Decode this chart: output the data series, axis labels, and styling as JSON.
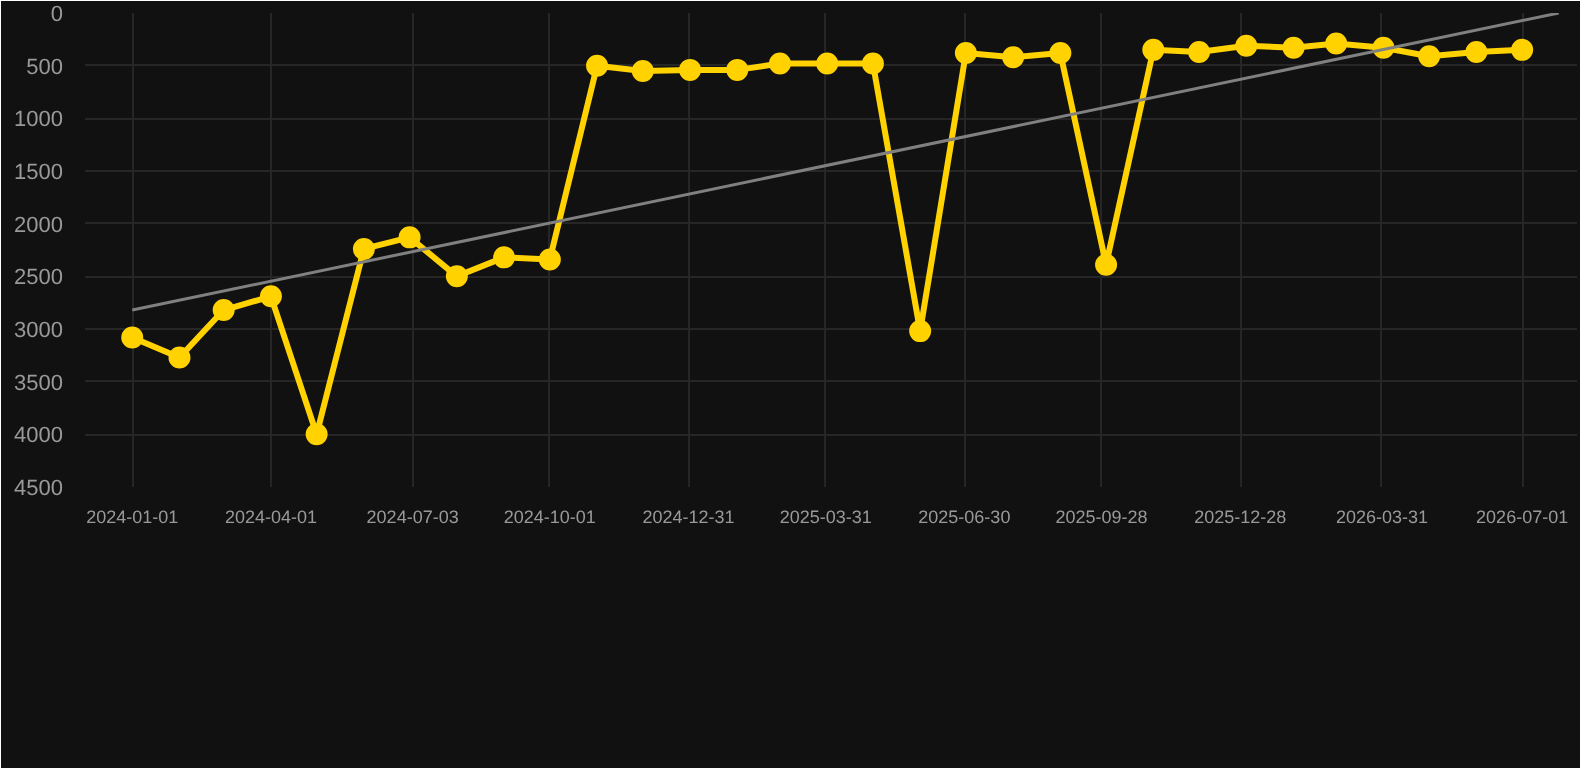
{
  "chart_data": {
    "type": "line",
    "x": [
      "2024-01-01",
      "2024-02-01",
      "2024-03-01",
      "2024-04-01",
      "2024-05-01",
      "2024-06-01",
      "2024-07-01",
      "2024-08-01",
      "2024-09-01",
      "2024-10-01",
      "2024-11-01",
      "2024-12-01",
      "2025-01-01",
      "2025-02-01",
      "2025-03-01",
      "2025-04-01",
      "2025-05-01",
      "2025-06-01",
      "2025-07-01",
      "2025-08-01",
      "2025-09-01",
      "2025-10-01",
      "2025-11-01",
      "2025-12-01",
      "2026-01-01",
      "2026-02-01",
      "2026-03-01",
      "2026-04-01",
      "2026-05-01",
      "2026-06-01",
      "2026-07-01"
    ],
    "series": [
      {
        "color": "#ffd200",
        "marker": "circle",
        "values": [
          3080,
          3270,
          2820,
          2690,
          4000,
          2240,
          2130,
          2500,
          2320,
          2340,
          500,
          550,
          540,
          540,
          480,
          480,
          480,
          3020,
          380,
          420,
          380,
          2390,
          350,
          370,
          310,
          330,
          290,
          330,
          410,
          370,
          350
        ]
      },
      {
        "type": "line",
        "color": "#808080",
        "marker": "none",
        "x": [
          "2024-01-01",
          "2026-07-25"
        ],
        "values": [
          2820,
          0
        ]
      }
    ],
    "xlim": [
      "2023-12-01",
      "2026-08-06"
    ],
    "xticks": [
      "2024-01-01",
      "2024-04-01",
      "2024-07-03",
      "2024-10-01",
      "2024-12-31",
      "2025-03-31",
      "2025-06-30",
      "2025-09-28",
      "2025-12-28",
      "2026-03-31",
      "2026-07-01"
    ],
    "ylim": [
      4500,
      0
    ],
    "yticks": [
      0,
      500,
      1000,
      1500,
      2000,
      2500,
      3000,
      3500,
      4000,
      4500
    ],
    "grid": true
  }
}
